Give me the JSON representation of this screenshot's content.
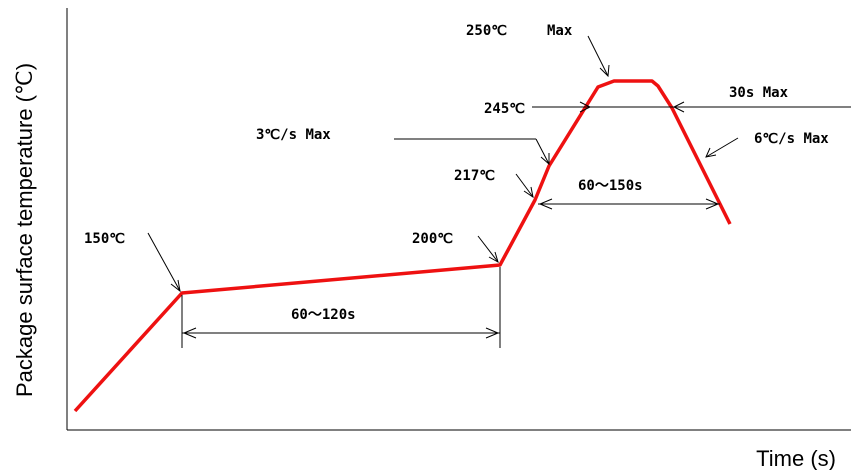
{
  "chart_data": {
    "type": "line",
    "title": "",
    "xlabel": "Time (s)",
    "ylabel": "Package surface temperature (℃)",
    "grid": false,
    "series": [
      {
        "color": "#ee1111",
        "points_desc": "reflow profile curve"
      }
    ],
    "annotations": {
      "t150": "150℃",
      "t200": "200℃",
      "t217": "217℃",
      "t245": "245℃",
      "t250": "250℃",
      "max250": "Max",
      "ramp_up": "3℃/s Max",
      "ramp_down": "6℃/s Max",
      "peak_time": "30s  Max",
      "soak_time": "60～120s",
      "liquidus_time": "60～150s"
    }
  }
}
